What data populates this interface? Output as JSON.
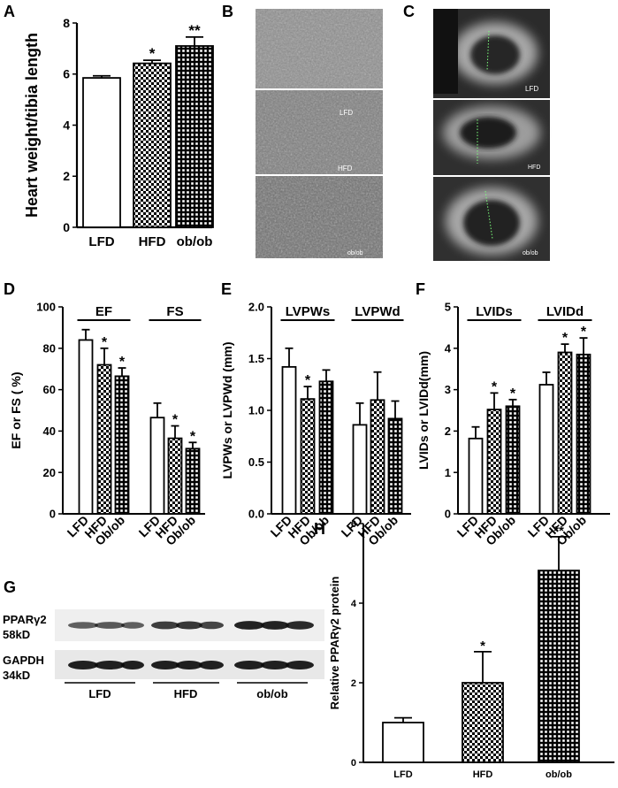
{
  "figure": {
    "panel_letters": [
      "A",
      "B",
      "C",
      "D",
      "E",
      "F",
      "G",
      "H"
    ],
    "micrograph_B_labels": [
      "LFD",
      "HFD",
      "ob/ob"
    ],
    "echo_C_labels": [
      "LFD",
      "HFD",
      "ob/ob"
    ],
    "western_blot": {
      "bands": [
        {
          "name": "PPARγ2",
          "size": "58kD"
        },
        {
          "name": "GAPDH",
          "size": "34kD"
        }
      ],
      "groups": [
        "LFD",
        "HFD",
        "ob/ob"
      ]
    }
  },
  "chart_data": [
    {
      "id": "A",
      "type": "bar",
      "ylabel": "Heart weight/tibia length",
      "categories": [
        "LFD",
        "HFD",
        "ob/ob"
      ],
      "values": [
        5.85,
        6.42,
        7.1
      ],
      "errors": [
        0.08,
        0.12,
        0.35
      ],
      "significance": [
        "",
        "*",
        "**"
      ],
      "ylim": [
        0,
        8
      ],
      "yticks": [
        0,
        2,
        4,
        6,
        8
      ],
      "patterns": [
        "white",
        "checker",
        "grid"
      ]
    },
    {
      "id": "D",
      "type": "bar",
      "ylabel": "EF or FS ( %)",
      "groups": [
        {
          "label": "EF",
          "categories": [
            "LFD",
            "HFD",
            "Ob/ob"
          ],
          "values": [
            84,
            72,
            66.5
          ],
          "errors": [
            5,
            8,
            4
          ],
          "significance": [
            "",
            "*",
            "*"
          ]
        },
        {
          "label": "FS",
          "categories": [
            "LFD",
            "HFD",
            "Ob/ob"
          ],
          "values": [
            46.5,
            36.5,
            31.5
          ],
          "errors": [
            7,
            6,
            3
          ],
          "significance": [
            "",
            "*",
            "*"
          ]
        }
      ],
      "ylim": [
        0,
        100
      ],
      "yticks": [
        0,
        20,
        40,
        60,
        80,
        100
      ],
      "patterns": [
        "white",
        "checker",
        "grid"
      ]
    },
    {
      "id": "E",
      "type": "bar",
      "ylabel": "LVPWs or LVPWd (mm)",
      "groups": [
        {
          "label": "LVPWs",
          "categories": [
            "LFD",
            "HFD",
            "Ob/ob"
          ],
          "values": [
            1.42,
            1.11,
            1.28
          ],
          "errors": [
            0.18,
            0.12,
            0.11
          ],
          "significance": [
            "",
            "*",
            ""
          ]
        },
        {
          "label": "LVPWd",
          "categories": [
            "LFD",
            "HFD",
            "Ob/ob"
          ],
          "values": [
            0.86,
            1.1,
            0.92
          ],
          "errors": [
            0.21,
            0.27,
            0.17
          ],
          "significance": [
            "",
            "",
            ""
          ]
        }
      ],
      "ylim": [
        0,
        2.0
      ],
      "yticks": [
        "0.0",
        "0.5",
        "1.0",
        "1.5",
        "2.0"
      ],
      "patterns": [
        "white",
        "checker",
        "grid"
      ]
    },
    {
      "id": "F",
      "type": "bar",
      "ylabel": "LVIDs or LVIDd(mm)",
      "groups": [
        {
          "label": "LVIDs",
          "categories": [
            "LFD",
            "HFD",
            "Ob/ob"
          ],
          "values": [
            1.82,
            2.52,
            2.6
          ],
          "errors": [
            0.28,
            0.4,
            0.16
          ],
          "significance": [
            "",
            "*",
            "*"
          ]
        },
        {
          "label": "LVIDd",
          "categories": [
            "LFD",
            "HFD",
            "Ob/ob"
          ],
          "values": [
            3.12,
            3.9,
            3.85
          ],
          "errors": [
            0.3,
            0.2,
            0.4
          ],
          "significance": [
            "",
            "*",
            "*"
          ]
        }
      ],
      "ylim": [
        0,
        5
      ],
      "yticks": [
        0,
        1,
        2,
        3,
        4,
        5
      ],
      "patterns": [
        "white",
        "checker",
        "grid"
      ]
    },
    {
      "id": "H",
      "type": "bar",
      "ylabel": "Relative PPARγ2 protein",
      "categories": [
        "LFD",
        "HFD",
        "ob/ob"
      ],
      "values": [
        1.0,
        2.0,
        4.82
      ],
      "errors": [
        0.12,
        0.78,
        0.85
      ],
      "significance": [
        "",
        "*",
        "**"
      ],
      "ylim": [
        0,
        6
      ],
      "yticks": [
        0,
        2,
        4,
        6
      ],
      "patterns": [
        "white",
        "checker",
        "grid"
      ]
    }
  ]
}
